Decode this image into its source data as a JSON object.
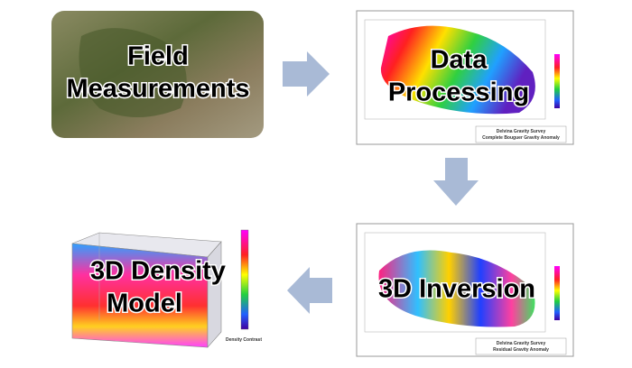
{
  "nodes": [
    {
      "label_lines": [
        "Field",
        "Measurements"
      ]
    },
    {
      "label_lines": [
        "Data",
        "Processing"
      ],
      "caption": [
        "Delvina Gravity Survey",
        "Complete Bouguer Gravity Anomaly"
      ]
    },
    {
      "label_lines": [
        "3D Inversion"
      ],
      "caption": [
        "Delvina Gravity Survey",
        "Residual Gravity Anomaly"
      ]
    },
    {
      "label_lines": [
        "3D Density",
        "Model"
      ],
      "legend_title": "Density Contrast"
    }
  ]
}
